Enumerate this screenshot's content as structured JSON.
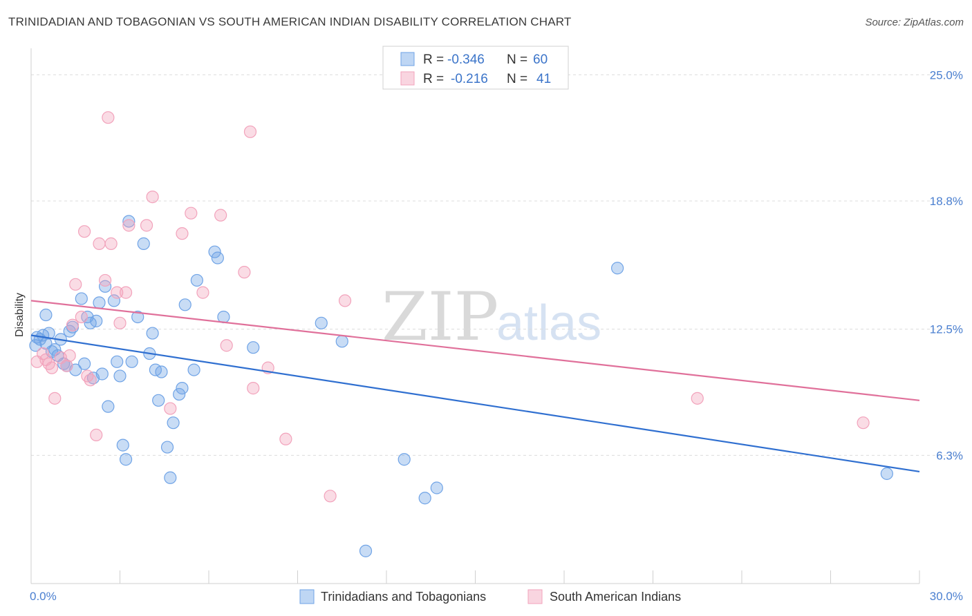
{
  "header": {
    "title": "TRINIDADIAN AND TOBAGONIAN VS SOUTH AMERICAN INDIAN DISABILITY CORRELATION CHART",
    "source": "Source: ZipAtlas.com"
  },
  "watermark": {
    "zip": "ZIP",
    "atlas": "atlas"
  },
  "legend": {
    "r_label": "R =",
    "n_label": "N =",
    "entries": [
      {
        "r": "-0.346",
        "n": "60",
        "color": "#6fa3e6"
      },
      {
        "r": "-0.216",
        "n": "41",
        "color": "#f2a2bb"
      }
    ]
  },
  "chart_data": {
    "type": "scatter",
    "xlabel": "",
    "ylabel": "Disability",
    "xlim": [
      0,
      30
    ],
    "ylim": [
      0,
      26.3
    ],
    "x_tick_labels": [
      "0.0%",
      "30.0%"
    ],
    "y_ticks": [
      {
        "value": 6.3,
        "label": "6.3%"
      },
      {
        "value": 12.5,
        "label": "12.5%"
      },
      {
        "value": 18.8,
        "label": "18.8%"
      },
      {
        "value": 25.0,
        "label": "25.0%"
      }
    ],
    "grid": "horizontal dashed",
    "legend_position": "top-center",
    "series": [
      {
        "name": "Trinidadians and Tobagonians",
        "color": "#6fa3e6",
        "line_color": "#2f6fd0",
        "trend": {
          "x": [
            0,
            30
          ],
          "y": [
            12.2,
            5.5
          ]
        },
        "points": [
          [
            0.2,
            12.1
          ],
          [
            0.3,
            12.0
          ],
          [
            0.4,
            12.2
          ],
          [
            0.5,
            13.2
          ],
          [
            0.5,
            11.8
          ],
          [
            0.7,
            11.4
          ],
          [
            0.8,
            11.5
          ],
          [
            1.0,
            12.0
          ],
          [
            1.1,
            10.8
          ],
          [
            1.2,
            10.7
          ],
          [
            1.3,
            12.4
          ],
          [
            1.4,
            12.6
          ],
          [
            1.5,
            10.5
          ],
          [
            1.7,
            14.0
          ],
          [
            1.8,
            10.8
          ],
          [
            2.0,
            12.8
          ],
          [
            2.1,
            10.1
          ],
          [
            2.2,
            12.9
          ],
          [
            2.3,
            13.8
          ],
          [
            2.4,
            10.3
          ],
          [
            2.5,
            14.6
          ],
          [
            2.6,
            8.7
          ],
          [
            2.8,
            13.9
          ],
          [
            2.9,
            10.9
          ],
          [
            3.0,
            10.2
          ],
          [
            3.1,
            6.8
          ],
          [
            3.2,
            6.1
          ],
          [
            3.3,
            17.8
          ],
          [
            3.4,
            10.9
          ],
          [
            3.6,
            13.1
          ],
          [
            3.8,
            16.7
          ],
          [
            4.0,
            11.3
          ],
          [
            4.1,
            12.3
          ],
          [
            4.2,
            10.5
          ],
          [
            4.3,
            9.0
          ],
          [
            4.4,
            10.4
          ],
          [
            4.6,
            6.7
          ],
          [
            4.7,
            5.2
          ],
          [
            4.8,
            7.9
          ],
          [
            5.0,
            9.3
          ],
          [
            5.1,
            9.6
          ],
          [
            5.2,
            13.7
          ],
          [
            5.5,
            10.5
          ],
          [
            5.6,
            14.9
          ],
          [
            6.2,
            16.3
          ],
          [
            6.3,
            16.0
          ],
          [
            6.5,
            13.1
          ],
          [
            7.5,
            11.6
          ],
          [
            9.8,
            12.8
          ],
          [
            10.5,
            11.9
          ],
          [
            11.3,
            1.6
          ],
          [
            12.6,
            6.1
          ],
          [
            13.3,
            4.2
          ],
          [
            13.7,
            4.7
          ],
          [
            19.8,
            15.5
          ],
          [
            28.9,
            5.4
          ],
          [
            0.15,
            11.7
          ],
          [
            0.6,
            12.3
          ],
          [
            1.9,
            13.1
          ],
          [
            0.9,
            11.2
          ]
        ]
      },
      {
        "name": "South American Indians",
        "color": "#f2a2bb",
        "line_color": "#e0709a",
        "trend": {
          "x": [
            0,
            30
          ],
          "y": [
            13.9,
            9.0
          ]
        },
        "points": [
          [
            0.2,
            10.9
          ],
          [
            0.4,
            11.3
          ],
          [
            0.6,
            10.8
          ],
          [
            0.7,
            10.6
          ],
          [
            0.8,
            9.1
          ],
          [
            1.0,
            11.1
          ],
          [
            1.2,
            10.7
          ],
          [
            1.3,
            11.2
          ],
          [
            1.4,
            12.7
          ],
          [
            1.5,
            14.7
          ],
          [
            1.7,
            13.1
          ],
          [
            1.8,
            17.3
          ],
          [
            1.9,
            10.2
          ],
          [
            2.0,
            10.0
          ],
          [
            2.2,
            7.3
          ],
          [
            2.3,
            16.7
          ],
          [
            2.5,
            14.9
          ],
          [
            2.6,
            22.9
          ],
          [
            2.7,
            16.7
          ],
          [
            2.9,
            14.3
          ],
          [
            3.0,
            12.8
          ],
          [
            3.2,
            14.3
          ],
          [
            3.3,
            17.6
          ],
          [
            3.9,
            17.6
          ],
          [
            4.1,
            19.0
          ],
          [
            4.7,
            8.6
          ],
          [
            5.1,
            17.2
          ],
          [
            5.4,
            18.2
          ],
          [
            5.8,
            14.3
          ],
          [
            6.4,
            18.1
          ],
          [
            6.6,
            11.7
          ],
          [
            7.2,
            15.3
          ],
          [
            7.4,
            22.2
          ],
          [
            7.5,
            9.6
          ],
          [
            8.0,
            10.6
          ],
          [
            8.6,
            7.1
          ],
          [
            10.1,
            4.3
          ],
          [
            10.6,
            13.9
          ],
          [
            22.5,
            9.1
          ],
          [
            28.1,
            7.9
          ],
          [
            0.5,
            11.0
          ]
        ]
      }
    ]
  }
}
